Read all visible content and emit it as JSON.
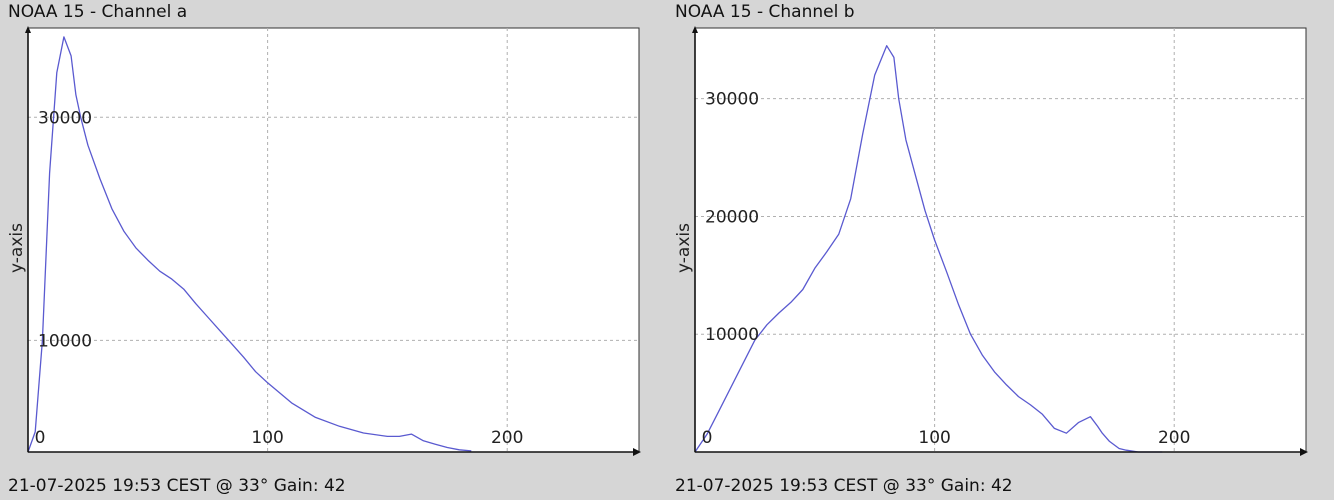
{
  "chart_data": [
    {
      "type": "line",
      "title": "NOAA 15 - Channel a",
      "footer": "21-07-2025 19:53 CEST @ 33° Gain: 42",
      "ylabel": "y-axis",
      "xlabel": "",
      "xlim": [
        0,
        255
      ],
      "ylim": [
        0,
        38000
      ],
      "xticks": [
        0,
        100,
        200
      ],
      "yticks": [
        10000,
        30000
      ],
      "grid": true,
      "line_color": "#5a5ad0",
      "x": [
        0,
        3,
        6,
        9,
        12,
        15,
        18,
        20,
        22,
        25,
        30,
        35,
        40,
        45,
        50,
        55,
        60,
        65,
        70,
        75,
        80,
        85,
        90,
        95,
        100,
        110,
        120,
        130,
        140,
        150,
        155,
        160,
        165,
        170,
        175,
        180,
        185
      ],
      "y": [
        0,
        1800,
        10000,
        25000,
        34000,
        37200,
        35500,
        32000,
        30000,
        27500,
        24500,
        21800,
        19800,
        18300,
        17200,
        16200,
        15500,
        14600,
        13300,
        12100,
        10900,
        9700,
        8500,
        7200,
        6200,
        4400,
        3100,
        2300,
        1700,
        1400,
        1400,
        1600,
        1000,
        700,
        400,
        200,
        100
      ]
    },
    {
      "type": "line",
      "title": "NOAA 15 - Channel b",
      "footer": "21-07-2025 19:53 CEST @ 33° Gain: 42",
      "ylabel": "y-axis",
      "xlabel": "",
      "xlim": [
        0,
        255
      ],
      "ylim": [
        0,
        36000
      ],
      "xticks": [
        0,
        100,
        200
      ],
      "yticks": [
        10000,
        20000,
        30000
      ],
      "grid": true,
      "line_color": "#5a5ad0",
      "x": [
        0,
        5,
        10,
        20,
        25,
        30,
        35,
        40,
        45,
        50,
        55,
        60,
        65,
        70,
        75,
        80,
        83,
        85,
        88,
        92,
        96,
        100,
        105,
        110,
        115,
        120,
        125,
        130,
        135,
        140,
        145,
        150,
        155,
        160,
        165,
        168,
        170,
        173,
        177,
        180,
        185,
        190,
        195
      ],
      "y": [
        0,
        1500,
        3500,
        7500,
        9500,
        10800,
        11800,
        12700,
        13800,
        15600,
        17000,
        18500,
        21500,
        27000,
        32000,
        34500,
        33500,
        30000,
        26500,
        23500,
        20500,
        18000,
        15300,
        12500,
        10000,
        8200,
        6800,
        5700,
        4700,
        4000,
        3200,
        2000,
        1600,
        2500,
        3000,
        2200,
        1600,
        900,
        300,
        150,
        0,
        0,
        0
      ]
    }
  ]
}
